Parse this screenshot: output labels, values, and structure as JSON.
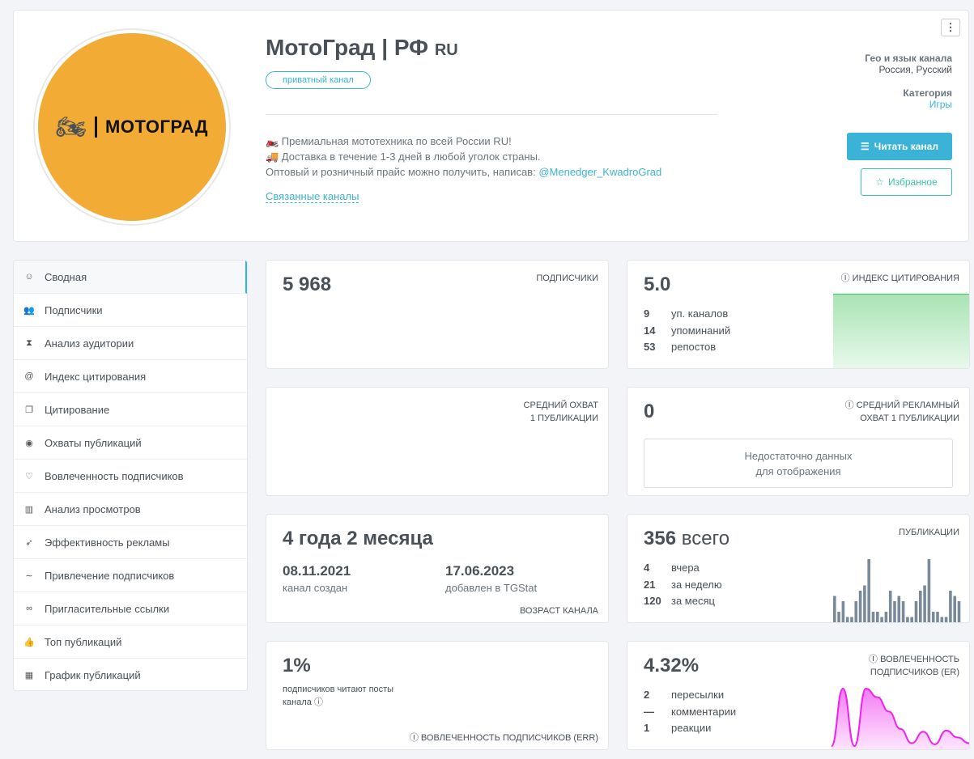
{
  "header": {
    "title": "МотоГрад | РФ",
    "title_flag": "RU",
    "badge": "приватный канал",
    "logo_text": "МОТОГРАД",
    "desc_line1": "🏍️ Премиальная мототехника по всей России RU!",
    "desc_line2": "🚚 Доставка в течение 1-3 дней в любой уголок страны.",
    "desc_line3": "Оптовый и розничный прайс можно получить, написав:",
    "desc_link": "@Menedger_KwadroGrad",
    "related": "Связанные каналы",
    "geo_label": "Гео и язык канала",
    "geo_value": "Россия, Русский",
    "category_label": "Категория",
    "category_value": "Игры",
    "read_button": "Читать канал",
    "fav_button": "Избранное",
    "menu_icon": "⋮"
  },
  "sidebar": {
    "items": [
      {
        "label": "Сводная",
        "icon": "☺"
      },
      {
        "label": "Подписчики",
        "icon": "👥"
      },
      {
        "label": "Анализ аудитории",
        "icon": "⧗"
      },
      {
        "label": "Индекс цитирования",
        "icon": "@"
      },
      {
        "label": "Цитирование",
        "icon": "❐"
      },
      {
        "label": "Охваты публикаций",
        "icon": "◉"
      },
      {
        "label": "Вовлеченность подписчиков",
        "icon": "♡"
      },
      {
        "label": "Анализ просмотров",
        "icon": "▥"
      },
      {
        "label": "Эффективность рекламы",
        "icon": "➶"
      },
      {
        "label": "Привлечение подписчиков",
        "icon": "∼"
      },
      {
        "label": "Пригласительные ссылки",
        "icon": "∞"
      },
      {
        "label": "Топ публикаций",
        "icon": "👍"
      },
      {
        "label": "График публикаций",
        "icon": "▦"
      }
    ]
  },
  "subs": {
    "value": "5 968",
    "label": "ПОДПИСЧИКИ"
  },
  "citation": {
    "value": "5.0",
    "label": "ИНДЕКС ЦИТИРОВАНИЯ",
    "rows": [
      {
        "n": "9",
        "t": "уп. каналов"
      },
      {
        "n": "14",
        "t": "упоминаний"
      },
      {
        "n": "53",
        "t": "репостов"
      }
    ]
  },
  "reach": {
    "label1": "СРЕДНИЙ ОХВАТ",
    "label2": "1 ПУБЛИКАЦИИ"
  },
  "adreach": {
    "value": "0",
    "label1": "СРЕДНИЙ РЕКЛАМНЫЙ",
    "label2": "ОХВАТ 1 ПУБЛИКАЦИИ",
    "empty1": "Недостаточно данных",
    "empty2": "для отображения"
  },
  "age": {
    "value": "4 года 2 месяца",
    "created_date": "08.11.2021",
    "created_label": "канал создан",
    "added_date": "17.06.2023",
    "added_label": "добавлен в TGStat",
    "label": "ВОЗРАСТ КАНАЛА"
  },
  "posts": {
    "value": "356",
    "suffix": "всего",
    "label": "ПУБЛИКАЦИИ",
    "rows": [
      {
        "n": "4",
        "t": "вчера"
      },
      {
        "n": "21",
        "t": "за неделю"
      },
      {
        "n": "120",
        "t": "за месяц"
      }
    ]
  },
  "err": {
    "value": "1%",
    "desc1": "подписчиков читают посты",
    "desc2": "канала",
    "label": "ВОВЛЕЧЕННОСТЬ ПОДПИСЧИКОВ (ERR)"
  },
  "er": {
    "value": "4.32%",
    "label1": "ВОВЛЕЧЕННОСТЬ",
    "label2": "ПОДПИСЧИКОВ (ER)",
    "rows": [
      {
        "n": "2",
        "t": "пересылки"
      },
      {
        "n": "—",
        "t": "комментарии"
      },
      {
        "n": "1",
        "t": "реакции"
      }
    ]
  },
  "chart_data": [
    {
      "type": "bar",
      "title": "Публикации",
      "values": [
        5,
        2,
        4,
        1,
        1,
        4,
        6,
        7,
        12,
        2,
        2,
        1,
        2,
        6,
        4,
        5,
        4,
        1,
        1,
        4,
        6,
        7,
        12,
        2,
        2,
        1,
        1,
        6,
        5,
        4
      ]
    },
    {
      "type": "area",
      "title": "Вовлеченность подписчиков (ER)",
      "values": [
        0,
        1,
        0,
        1,
        0.85,
        0.6,
        0.3,
        0.05,
        0.25,
        0.03,
        0.27,
        0.15,
        0.05
      ]
    },
    {
      "type": "area",
      "title": "Индекс цитирования",
      "values": [
        1,
        1
      ]
    }
  ],
  "colors": {
    "accent": "#3bb3d6",
    "green": "#3bc4a7",
    "bars": "#7a8a9b",
    "er": "#ee22ee"
  }
}
